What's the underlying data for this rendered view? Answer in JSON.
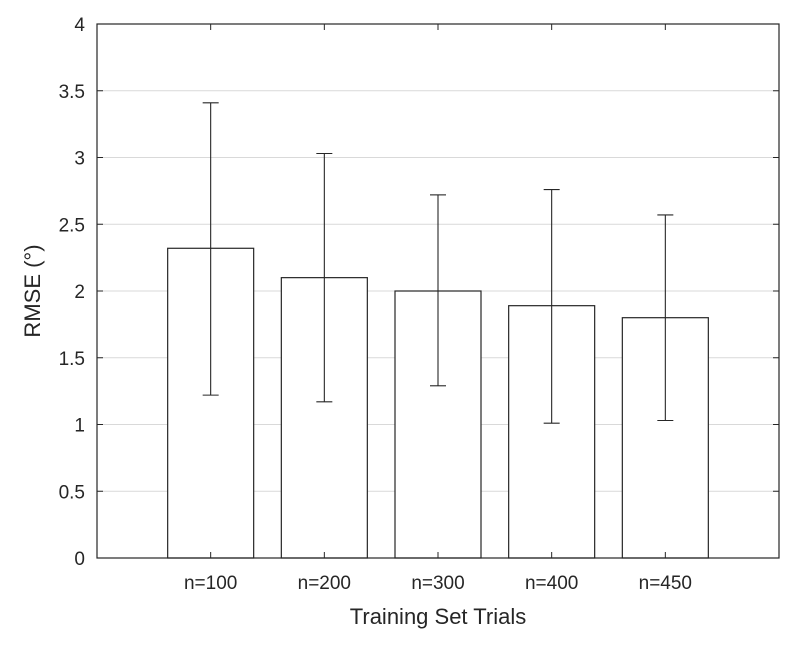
{
  "chart_data": {
    "type": "bar",
    "categories": [
      "n=100",
      "n=200",
      "n=300",
      "n=400",
      "n=450"
    ],
    "values": [
      2.32,
      2.1,
      2.0,
      1.89,
      1.8
    ],
    "error_low": [
      1.22,
      1.17,
      1.29,
      1.01,
      1.03
    ],
    "error_high": [
      3.41,
      3.03,
      2.72,
      2.76,
      2.57
    ],
    "xlabel": "Training Set Trials",
    "ylabel": "RMSE (°)",
    "ylim": [
      0,
      4
    ],
    "yticks": [
      "0",
      "0.5",
      "1",
      "1.5",
      "2",
      "2.5",
      "3",
      "3.5",
      "4"
    ],
    "grid": "horizontal",
    "bar_fill": "#ffffff",
    "bar_stroke": "#262626",
    "grid_color": "#d9d9d9"
  }
}
